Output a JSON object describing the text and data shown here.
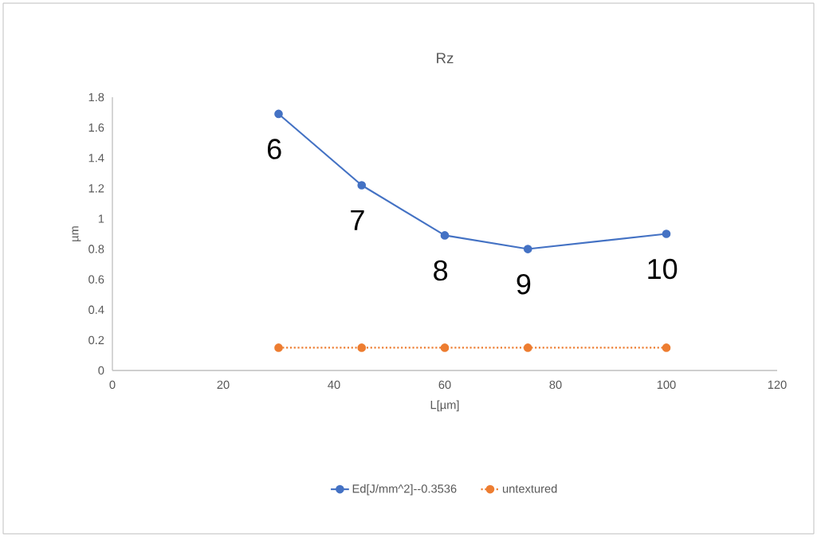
{
  "chart_data": {
    "type": "line",
    "title": "Rz",
    "xlabel": "L[µm]",
    "ylabel": "µm",
    "x": [
      30,
      45,
      60,
      75,
      100
    ],
    "series": [
      {
        "name": "Ed[J/mm^2]--0.3536",
        "color": "#4472c4",
        "values": [
          1.69,
          1.22,
          0.89,
          0.8,
          0.9
        ],
        "line_style": "solid"
      },
      {
        "name": "untextured",
        "color": "#ed7d31",
        "values": [
          0.15,
          0.15,
          0.15,
          0.15,
          0.15
        ],
        "line_style": "dotted"
      }
    ],
    "marker": "circle",
    "legend": "bottom",
    "xlim": [
      0,
      120
    ],
    "xticks": [
      0,
      20,
      40,
      60,
      80,
      100,
      120
    ],
    "ylim": [
      0,
      1.8
    ],
    "yticks": [
      0,
      0.2,
      0.4,
      0.6,
      0.8,
      1,
      1.2,
      1.4,
      1.6,
      1.8
    ],
    "annotations": [
      {
        "text": "6",
        "x": 30,
        "y": 1.69
      },
      {
        "text": "7",
        "x": 45,
        "y": 1.22
      },
      {
        "text": "8",
        "x": 60,
        "y": 0.89
      },
      {
        "text": "9",
        "x": 75,
        "y": 0.8
      },
      {
        "text": "10",
        "x": 100,
        "y": 0.9
      }
    ]
  }
}
